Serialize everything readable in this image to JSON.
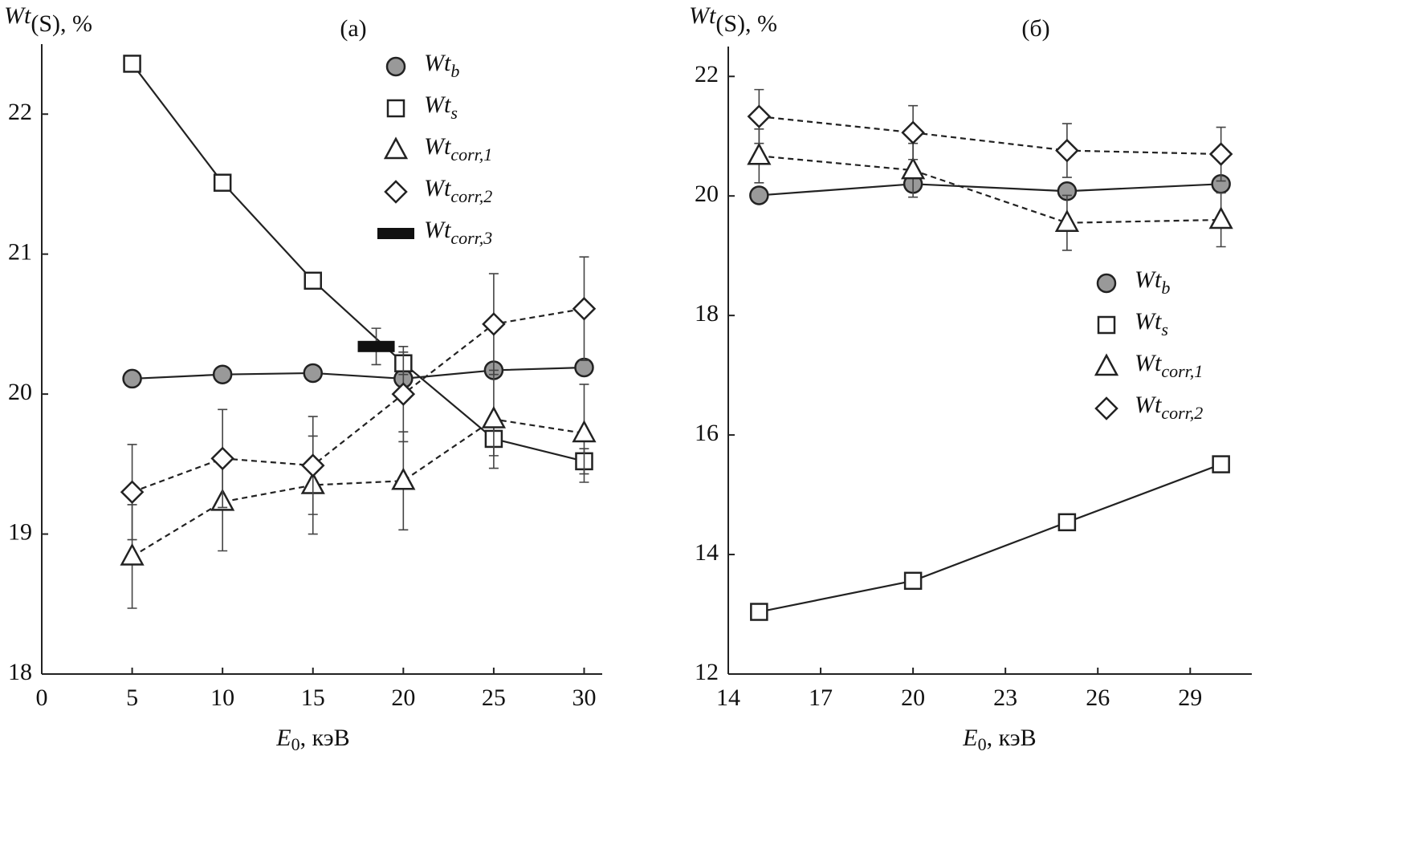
{
  "chart_data": [
    {
      "type": "line",
      "title": "(a)",
      "ylabel": "Wt(S), %",
      "xlabel": "E0, кэВ",
      "x": [
        5,
        10,
        15,
        20,
        25,
        30
      ],
      "xlim": [
        0,
        31
      ],
      "xticks": [
        0,
        5,
        10,
        15,
        20,
        25,
        30
      ],
      "ylim": [
        18,
        22.5
      ],
      "yticks": [
        18,
        19,
        20,
        21,
        22
      ],
      "grid": false,
      "legend": "upper right",
      "series": [
        {
          "name": "Wtb",
          "marker": "circle",
          "line": "solid",
          "color": "#999999",
          "values": [
            20.11,
            20.14,
            20.15,
            20.11,
            20.17,
            20.19
          ],
          "errors": [
            0.05,
            0.04,
            0.03,
            0.04,
            0.03,
            0.03
          ]
        },
        {
          "name": "Wts",
          "marker": "square",
          "line": "solid",
          "color": "#ffffff",
          "values": [
            22.36,
            21.51,
            20.81,
            20.22,
            19.68,
            19.52
          ],
          "errors": [
            0.05,
            0.04,
            0.03,
            0.08,
            0.12,
            0.09
          ]
        },
        {
          "name": "Wtcorr,1",
          "marker": "triangle",
          "line": "dashed",
          "color": "#ffffff",
          "values": [
            18.84,
            19.23,
            19.35,
            19.38,
            19.82,
            19.72
          ],
          "errors": [
            0.37,
            0.35,
            0.35,
            0.35,
            0.35,
            0.35
          ]
        },
        {
          "name": "Wtcorr,2",
          "marker": "diamond",
          "line": "dashed",
          "color": "#ffffff",
          "values": [
            19.3,
            19.54,
            19.49,
            20.0,
            20.5,
            20.61
          ],
          "errors": [
            0.34,
            0.35,
            0.35,
            0.34,
            0.36,
            0.37
          ]
        },
        {
          "name": "Wtcorr,3",
          "marker": "bar",
          "line": "none",
          "color": "#111111",
          "x": [
            18.5
          ],
          "values": [
            20.34
          ],
          "errors": [
            0.13
          ]
        }
      ]
    },
    {
      "type": "line",
      "title": "(б)",
      "ylabel": "Wt(S), %",
      "xlabel": "E0, кэВ",
      "x": [
        15,
        20,
        25,
        30
      ],
      "xlim": [
        14,
        31
      ],
      "xticks": [
        14,
        17,
        20,
        23,
        26,
        29
      ],
      "ylim": [
        12,
        22.5
      ],
      "yticks": [
        12,
        14,
        16,
        18,
        20,
        22
      ],
      "grid": false,
      "legend": "center right",
      "series": [
        {
          "name": "Wtb",
          "marker": "circle",
          "line": "solid",
          "color": "#999999",
          "values": [
            20.01,
            20.2,
            20.08,
            20.2
          ],
          "errors": [
            0.05,
            0.05,
            0.05,
            0.05
          ]
        },
        {
          "name": "Wts",
          "marker": "square",
          "line": "solid",
          "color": "#ffffff",
          "values": [
            13.04,
            13.56,
            14.54,
            15.51
          ],
          "errors": [
            0.05,
            0.05,
            0.05,
            0.05
          ]
        },
        {
          "name": "Wtcorr,1",
          "marker": "triangle",
          "line": "dashed",
          "color": "#ffffff",
          "values": [
            20.67,
            20.43,
            19.55,
            19.6
          ],
          "errors": [
            0.45,
            0.45,
            0.46,
            0.45
          ]
        },
        {
          "name": "Wtcorr,2",
          "marker": "diamond",
          "line": "dashed",
          "color": "#ffffff",
          "values": [
            21.33,
            21.06,
            20.76,
            20.7
          ],
          "errors": [
            0.45,
            0.45,
            0.45,
            0.45
          ]
        }
      ]
    }
  ]
}
